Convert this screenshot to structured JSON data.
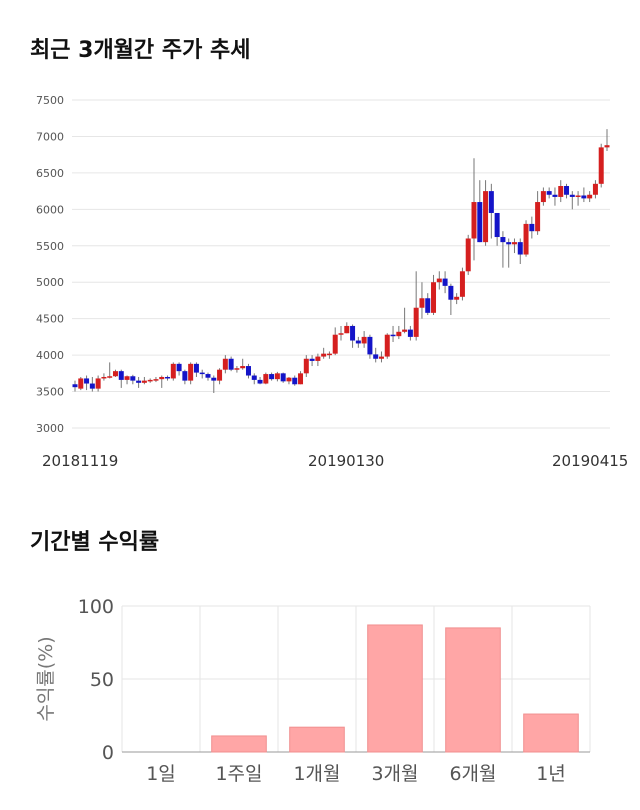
{
  "page": {
    "candle_title": "최근 3개월간 주가 추세",
    "returns_title": "기간별 수익률"
  },
  "colors": {
    "up": "#d51f1f",
    "down": "#1414c8",
    "wick": "#777777",
    "bar": "#ffa6a6",
    "bar_edge": "#f08f8f",
    "grid": "#e6e6e6"
  },
  "chart_data": [
    {
      "type": "candlestick",
      "title": "최근 3개월간 주가 추세",
      "ylim": [
        3000,
        7500
      ],
      "yticks": [
        3000,
        3500,
        4000,
        4500,
        5000,
        5500,
        6000,
        6500,
        7000,
        7500
      ],
      "x_labels": [
        "20181119",
        "20190130",
        "20190415"
      ],
      "grid": true,
      "closes": [
        3560,
        3680,
        3610,
        3540,
        3680,
        3700,
        3710,
        3780,
        3660,
        3710,
        3650,
        3620,
        3650,
        3660,
        3670,
        3700,
        3680,
        3880,
        3780,
        3650,
        3880,
        3760,
        3740,
        3690,
        3650,
        3800,
        3950,
        3800,
        3820,
        3850,
        3720,
        3660,
        3610,
        3740,
        3670,
        3750,
        3640,
        3690,
        3600,
        3750,
        3950,
        3920,
        3980,
        4020,
        4020,
        4280,
        4300,
        4400,
        4200,
        4160,
        4250,
        4010,
        3950,
        3980,
        4280,
        4260,
        4320,
        4350,
        4250,
        4650,
        4780,
        4580,
        5000,
        5050,
        4950,
        4760,
        4800,
        5150,
        5600,
        6100,
        5550,
        6250,
        5950,
        5620,
        5550,
        5520,
        5550,
        5380,
        5800,
        5700,
        6100,
        6250,
        6200,
        6170,
        6320,
        6200,
        6170,
        6190,
        6150,
        6200,
        6350,
        6850,
        6880
      ],
      "opens": [
        3600,
        3540,
        3680,
        3610,
        3540,
        3680,
        3700,
        3710,
        3780,
        3660,
        3710,
        3650,
        3620,
        3650,
        3660,
        3670,
        3700,
        3680,
        3880,
        3780,
        3650,
        3880,
        3760,
        3740,
        3690,
        3650,
        3800,
        3950,
        3800,
        3820,
        3850,
        3720,
        3660,
        3610,
        3740,
        3670,
        3750,
        3640,
        3690,
        3600,
        3750,
        3950,
        3920,
        3980,
        4020,
        4020,
        4280,
        4300,
        4400,
        4200,
        4160,
        4250,
        4010,
        3950,
        3980,
        4280,
        4260,
        4320,
        4350,
        4250,
        4650,
        4780,
        4580,
        5000,
        5050,
        4950,
        4760,
        4800,
        5150,
        5600,
        6100,
        5550,
        6250,
        5950,
        5620,
        5550,
        5520,
        5550,
        5380,
        5800,
        5700,
        6100,
        6250,
        6200,
        6170,
        6320,
        6200,
        6170,
        6190,
        6150,
        6200,
        6350,
        6850
      ],
      "highs": [
        3650,
        3700,
        3720,
        3700,
        3720,
        3750,
        3900,
        3800,
        3800,
        3720,
        3730,
        3700,
        3700,
        3680,
        3700,
        3720,
        3720,
        3900,
        3900,
        3800,
        3900,
        3900,
        3800,
        3760,
        3720,
        3820,
        4000,
        3980,
        3850,
        3950,
        3880,
        3750,
        3700,
        3760,
        3760,
        3770,
        3760,
        3700,
        3720,
        3780,
        4000,
        4000,
        4020,
        4100,
        4050,
        4380,
        4400,
        4450,
        4420,
        4250,
        4330,
        4280,
        4100,
        4050,
        4300,
        4400,
        4400,
        4650,
        4400,
        5150,
        5000,
        4850,
        5100,
        5150,
        5150,
        4980,
        4850,
        5200,
        5650,
        6700,
        6400,
        6400,
        6350,
        5750,
        5700,
        5600,
        5600,
        5600,
        5850,
        5900,
        6250,
        6300,
        6300,
        6300,
        6400,
        6350,
        6250,
        6250,
        6300,
        6250,
        6400,
        6900,
        7100
      ],
      "lows": [
        3500,
        3520,
        3520,
        3500,
        3500,
        3650,
        3680,
        3700,
        3550,
        3600,
        3600,
        3550,
        3600,
        3620,
        3630,
        3550,
        3650,
        3650,
        3720,
        3600,
        3600,
        3700,
        3680,
        3650,
        3480,
        3600,
        3750,
        3780,
        3760,
        3800,
        3680,
        3600,
        3600,
        3600,
        3650,
        3640,
        3620,
        3600,
        3580,
        3600,
        3700,
        3850,
        3850,
        3950,
        3950,
        4000,
        4200,
        4300,
        4100,
        4100,
        4100,
        3950,
        3900,
        3900,
        3950,
        4180,
        4220,
        4300,
        4200,
        4200,
        4500,
        4550,
        4550,
        4900,
        4850,
        4550,
        4700,
        4750,
        5100,
        5300,
        5550,
        5500,
        5600,
        5500,
        5200,
        5200,
        5400,
        5250,
        5350,
        5600,
        5650,
        6050,
        6150,
        6050,
        6100,
        6150,
        6000,
        6050,
        6100,
        6100,
        6150,
        6300,
        6800
      ]
    },
    {
      "type": "bar",
      "title": "기간별 수익률",
      "categories": [
        "1일",
        "1주일",
        "1개월",
        "3개월",
        "6개월",
        "1년"
      ],
      "values": [
        0,
        11,
        17,
        87,
        85,
        26
      ],
      "ylabel": "수익률(%)",
      "ylim": [
        0,
        100
      ],
      "yticks": [
        0,
        50,
        100
      ],
      "grid": true
    }
  ]
}
